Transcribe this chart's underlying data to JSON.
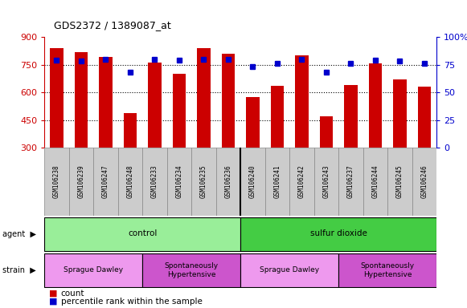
{
  "title": "GDS2372 / 1389087_at",
  "samples": [
    "GSM106238",
    "GSM106239",
    "GSM106247",
    "GSM106248",
    "GSM106233",
    "GSM106234",
    "GSM106235",
    "GSM106236",
    "GSM106240",
    "GSM106241",
    "GSM106242",
    "GSM106243",
    "GSM106237",
    "GSM106244",
    "GSM106245",
    "GSM106246"
  ],
  "counts": [
    840,
    820,
    790,
    490,
    760,
    700,
    840,
    810,
    575,
    635,
    800,
    470,
    640,
    755,
    670,
    630
  ],
  "percentiles": [
    79,
    78,
    80,
    68,
    80,
    79,
    80,
    80,
    73,
    76,
    80,
    68,
    76,
    79,
    78,
    76
  ],
  "ymin": 300,
  "ymax": 900,
  "yticks_left": [
    300,
    450,
    600,
    750,
    900
  ],
  "yticks_right": [
    0,
    25,
    50,
    75,
    100
  ],
  "ytick_right_labels": [
    "0",
    "25",
    "50",
    "75",
    "100%"
  ],
  "gridlines_at": [
    450,
    600,
    750
  ],
  "bar_color": "#cc0000",
  "dot_color": "#0000cc",
  "label_bg_color": "#cccccc",
  "bg_color": "#ffffff",
  "agent_groups": [
    {
      "label": "control",
      "start": 0,
      "end": 7,
      "color": "#99ee99"
    },
    {
      "label": "sulfur dioxide",
      "start": 8,
      "end": 15,
      "color": "#44cc44"
    }
  ],
  "strain_groups": [
    {
      "label": "Sprague Dawley",
      "start": 0,
      "end": 3,
      "color": "#ee99ee"
    },
    {
      "label": "Spontaneously\nHypertensive",
      "start": 4,
      "end": 7,
      "color": "#cc55cc"
    },
    {
      "label": "Sprague Dawley",
      "start": 8,
      "end": 11,
      "color": "#ee99ee"
    },
    {
      "label": "Spontaneously\nHypertensive",
      "start": 12,
      "end": 15,
      "color": "#cc55cc"
    }
  ],
  "left_labels": [
    "agent",
    "strain"
  ],
  "left_arrow": "▶"
}
